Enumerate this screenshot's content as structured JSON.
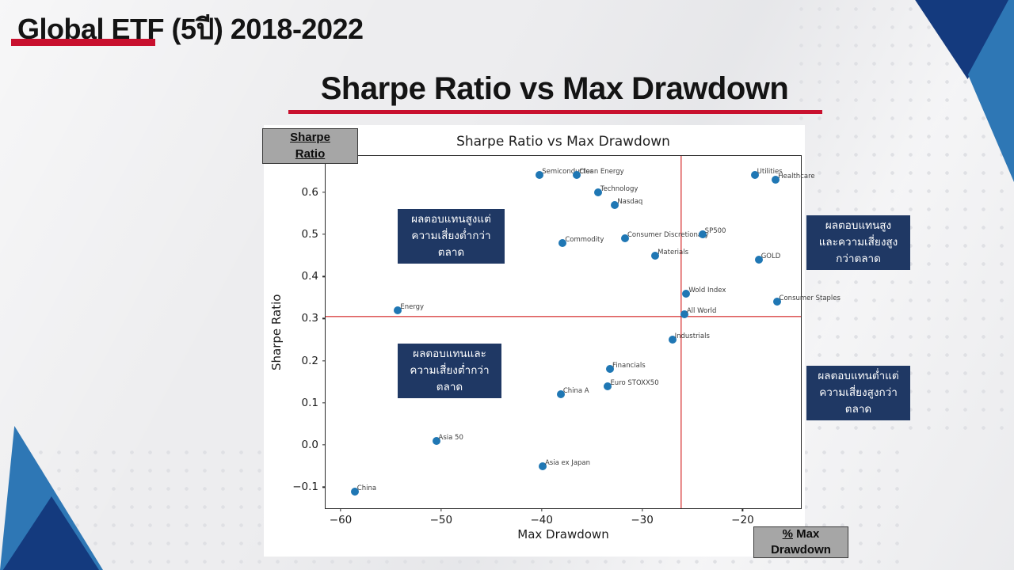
{
  "slide": {
    "title": "Global ETF (5ปี) 2018-2022",
    "subtitle": "Sharpe Ratio vs Max Drawdown"
  },
  "colors": {
    "accent_red": "#C8102E",
    "ref_line_red": "#CC0000",
    "marker_blue": "#1F77B4",
    "note_navy": "#1F3864",
    "triangle_navy": "#143A7E",
    "triangle_blue": "#2E77B5",
    "label_box_gray": "#A6A6A6"
  },
  "axis_callouts": {
    "y_box_line1": "Sharpe",
    "y_box_line2": "Ratio",
    "x_box_pct": "%",
    "x_box_line1_rest": " Max",
    "x_box_line2": "Drawdown"
  },
  "quadrant_notes": {
    "high_return_low_risk": [
      "ผลตอบแทนสูงแต่",
      "ความเสี่ยงต่ำกว่า",
      "ตลาด"
    ],
    "low_return_low_risk": [
      "ผลตอบแทนและ",
      "ความเสี่ยงต่ำกว่า",
      "ตลาด"
    ],
    "high_return_high_risk": [
      "ผลตอบแทนสูง",
      "และความเสี่ยงสูง",
      "กว่าตลาด"
    ],
    "low_return_high_risk": [
      "ผลตอบแทนต่ำแต่",
      "ความเสี่ยงสูงกว่า",
      "ตลาด"
    ]
  },
  "chart_data": {
    "type": "scatter",
    "title": "Sharpe Ratio vs Max Drawdown",
    "xlabel": "Max Drawdown",
    "ylabel": "Sharpe Ratio",
    "xlim": [
      -61.5,
      -14.2
    ],
    "ylim": [
      -0.15,
      0.686
    ],
    "x_ticks": [
      -60,
      -50,
      -40,
      -30,
      -20
    ],
    "y_ticks": [
      -0.1,
      0.0,
      0.1,
      0.2,
      0.3,
      0.4,
      0.5,
      0.6
    ],
    "grid": false,
    "legend": null,
    "reference_lines": {
      "vertical_x": -26.1,
      "horizontal_y": 0.305
    },
    "points": [
      {
        "label": "Semiconductor",
        "x": -40.2,
        "y": 0.64
      },
      {
        "label": "Clean Energy",
        "x": -36.5,
        "y": 0.64
      },
      {
        "label": "Technology",
        "x": -34.4,
        "y": 0.6
      },
      {
        "label": "Nasdaq",
        "x": -32.7,
        "y": 0.57
      },
      {
        "label": "Commodity",
        "x": -37.9,
        "y": 0.48
      },
      {
        "label": "Consumer Discretionary",
        "x": -31.7,
        "y": 0.49
      },
      {
        "label": "SP500",
        "x": -24.0,
        "y": 0.5
      },
      {
        "label": "Materials",
        "x": -28.7,
        "y": 0.45
      },
      {
        "label": "Utilities",
        "x": -18.8,
        "y": 0.64
      },
      {
        "label": "Healthcare",
        "x": -16.7,
        "y": 0.63
      },
      {
        "label": "GOLD",
        "x": -18.4,
        "y": 0.44
      },
      {
        "label": "Wold Index",
        "x": -25.6,
        "y": 0.36
      },
      {
        "label": "Consumer Staples",
        "x": -16.6,
        "y": 0.34
      },
      {
        "label": "All World",
        "x": -25.8,
        "y": 0.31
      },
      {
        "label": "Industrials",
        "x": -27.0,
        "y": 0.25
      },
      {
        "label": "Financials",
        "x": -33.2,
        "y": 0.18
      },
      {
        "label": "Euro STOXX50",
        "x": -33.4,
        "y": 0.14
      },
      {
        "label": "China A",
        "x": -38.1,
        "y": 0.12
      },
      {
        "label": "Energy",
        "x": -54.3,
        "y": 0.32
      },
      {
        "label": "Asia 50",
        "x": -50.5,
        "y": 0.01
      },
      {
        "label": "Asia ex Japan",
        "x": -39.9,
        "y": -0.05
      },
      {
        "label": "China",
        "x": -58.6,
        "y": -0.11
      }
    ]
  }
}
